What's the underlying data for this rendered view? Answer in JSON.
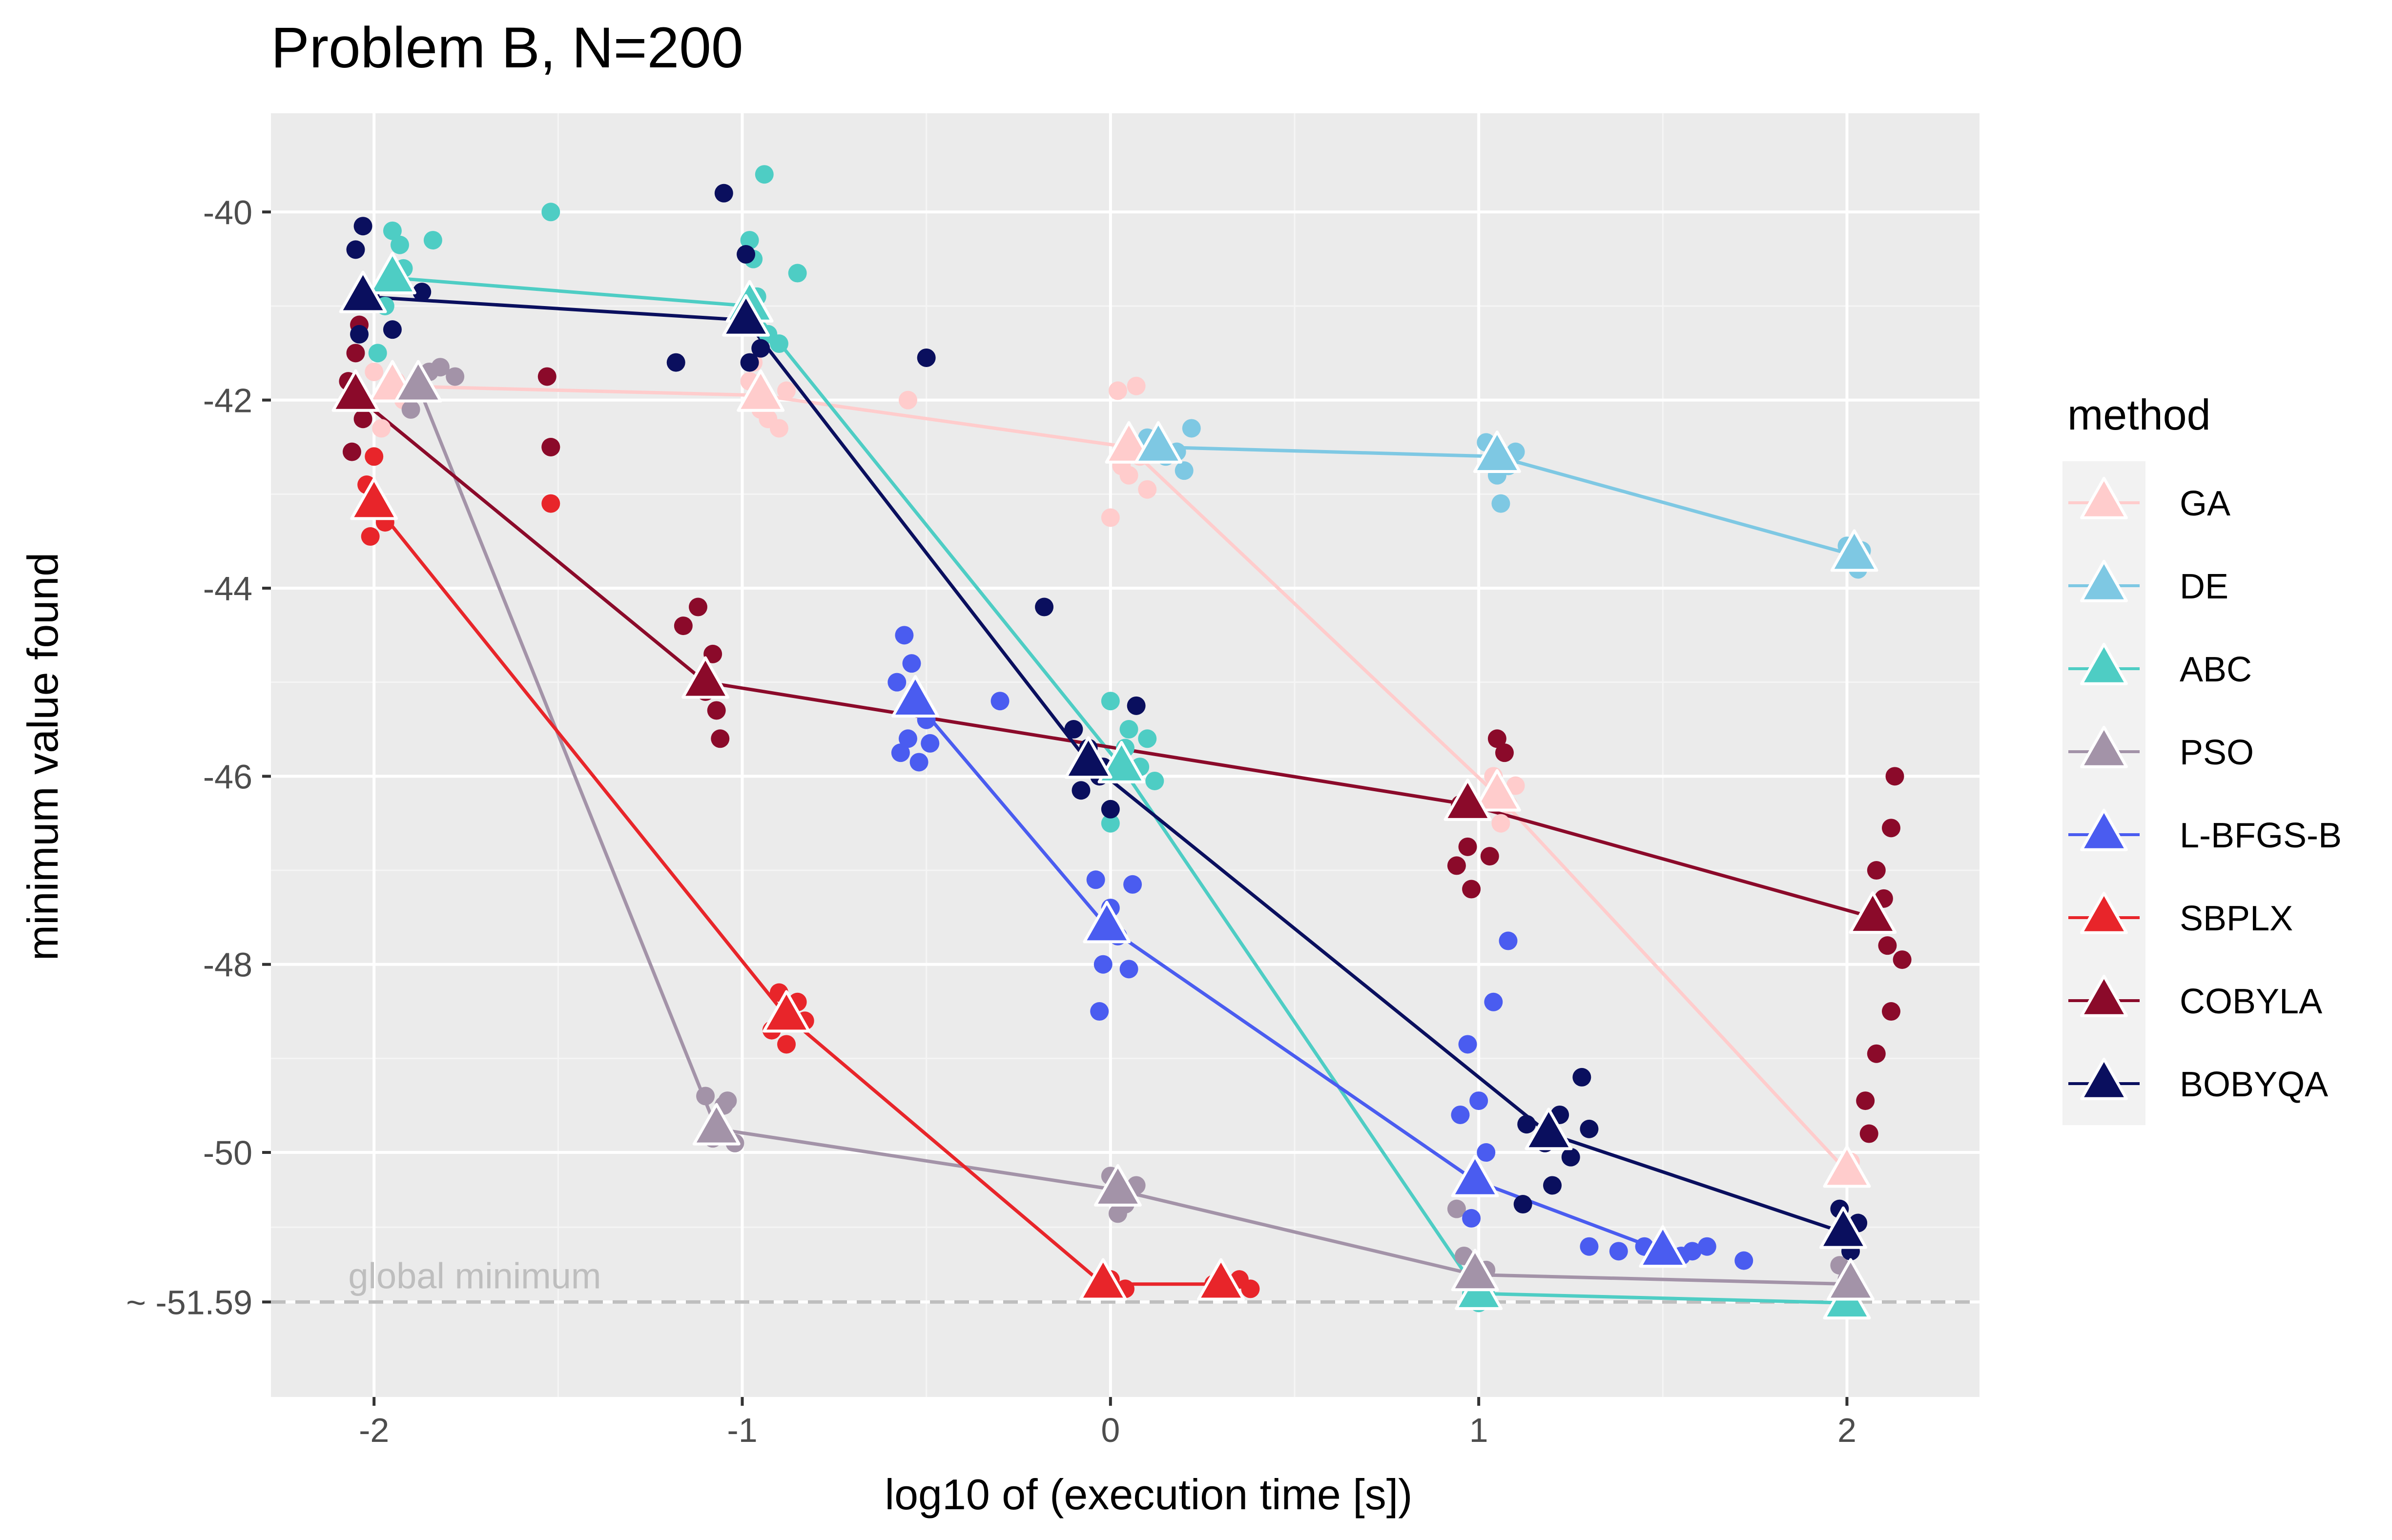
{
  "chart_data": {
    "type": "scatter",
    "title": "Problem B, N=200",
    "xlabel": "log10 of (execution time [s])",
    "ylabel": "minimum value found",
    "xlim": [
      -2.28,
      2.36
    ],
    "ylim": [
      -52.6,
      -38.95
    ],
    "x_ticks": [
      -2,
      -1,
      0,
      1,
      2
    ],
    "x_tick_labels": [
      "-2",
      "-1",
      "0",
      "1",
      "2"
    ],
    "y_ticks": [
      -40,
      -42,
      -44,
      -46,
      -48,
      -50,
      -51.59
    ],
    "y_tick_labels": [
      "-40",
      "-42",
      "-44",
      "-46",
      "-48",
      "-50",
      "~ -51.59"
    ],
    "grid": true,
    "background": "#ebebeb",
    "global_minimum": {
      "value": -51.59,
      "label": "global minimum",
      "color": "#bebebe"
    },
    "legend": {
      "title": "method",
      "position": "right"
    },
    "series": [
      {
        "name": "GA",
        "color": "#ffcccc",
        "means": [
          [
            -1.95,
            -41.85
          ],
          [
            -0.95,
            -41.95
          ],
          [
            0.05,
            -42.5
          ],
          [
            1.05,
            -46.2
          ],
          [
            2.0,
            -50.2
          ]
        ],
        "points": [
          [
            -2.0,
            -41.7
          ],
          [
            -1.96,
            -41.9
          ],
          [
            -1.92,
            -42.0
          ],
          [
            -1.98,
            -42.3
          ],
          [
            -1.94,
            -41.8
          ],
          [
            -1.9,
            -41.95
          ],
          [
            -0.98,
            -41.8
          ],
          [
            -0.95,
            -42.1
          ],
          [
            -0.9,
            -42.3
          ],
          [
            -0.93,
            -42.2
          ],
          [
            -0.97,
            -41.6
          ],
          [
            -0.88,
            -41.9
          ],
          [
            -0.55,
            -42.0
          ],
          [
            0.0,
            -43.25
          ],
          [
            0.02,
            -41.9
          ],
          [
            0.05,
            -42.8
          ],
          [
            0.08,
            -42.6
          ],
          [
            0.1,
            -42.95
          ],
          [
            0.07,
            -41.85
          ],
          [
            0.03,
            -42.7
          ],
          [
            1.04,
            -46.0
          ],
          [
            1.08,
            -46.3
          ],
          [
            1.1,
            -46.1
          ],
          [
            1.06,
            -46.5
          ],
          [
            2.01,
            -50.1
          ]
        ]
      },
      {
        "name": "DE",
        "color": "#7ec8e3",
        "means": [
          [
            0.13,
            -42.5
          ],
          [
            1.05,
            -42.6
          ],
          [
            2.02,
            -43.65
          ]
        ],
        "points": [
          [
            0.1,
            -42.4
          ],
          [
            0.15,
            -42.6
          ],
          [
            0.18,
            -42.55
          ],
          [
            0.22,
            -42.3
          ],
          [
            0.2,
            -42.75
          ],
          [
            0.12,
            -42.45
          ],
          [
            1.02,
            -42.45
          ],
          [
            1.05,
            -42.8
          ],
          [
            1.08,
            -42.7
          ],
          [
            1.06,
            -43.1
          ],
          [
            1.1,
            -42.55
          ],
          [
            2.0,
            -43.55
          ],
          [
            2.03,
            -43.8
          ],
          [
            2.04,
            -43.6
          ]
        ]
      },
      {
        "name": "ABC",
        "color": "#4ecdc4",
        "means": [
          [
            -1.95,
            -40.7
          ],
          [
            -0.98,
            -41.0
          ],
          [
            0.03,
            -45.9
          ],
          [
            1.0,
            -51.5
          ],
          [
            2.0,
            -51.6
          ]
        ],
        "points": [
          [
            -1.95,
            -40.2
          ],
          [
            -1.93,
            -40.35
          ],
          [
            -1.84,
            -40.3
          ],
          [
            -1.97,
            -41.0
          ],
          [
            -1.99,
            -41.5
          ],
          [
            -1.92,
            -40.6
          ],
          [
            -1.52,
            -40.0
          ],
          [
            -0.94,
            -39.6
          ],
          [
            -0.98,
            -40.3
          ],
          [
            -0.96,
            -40.9
          ],
          [
            -0.93,
            -41.3
          ],
          [
            -0.9,
            -41.4
          ],
          [
            -0.85,
            -40.65
          ],
          [
            -0.97,
            -40.5
          ],
          [
            0.0,
            -45.2
          ],
          [
            0.05,
            -45.5
          ],
          [
            0.1,
            -45.6
          ],
          [
            0.08,
            -45.9
          ],
          [
            0.12,
            -46.05
          ],
          [
            0.0,
            -46.5
          ],
          [
            0.04,
            -45.7
          ],
          [
            0.98,
            -51.5
          ],
          [
            1.0,
            -51.6
          ],
          [
            1.02,
            -51.45
          ],
          [
            1.99,
            -51.6
          ],
          [
            2.01,
            -51.55
          ]
        ]
      },
      {
        "name": "PSO",
        "color": "#a393a8",
        "means": [
          [
            -1.88,
            -41.85
          ],
          [
            -1.07,
            -49.75
          ],
          [
            0.02,
            -50.4
          ],
          [
            0.99,
            -51.3
          ],
          [
            2.01,
            -51.4
          ]
        ],
        "points": [
          [
            -1.85,
            -41.7
          ],
          [
            -1.87,
            -41.9
          ],
          [
            -1.9,
            -42.1
          ],
          [
            -1.82,
            -41.65
          ],
          [
            -1.78,
            -41.75
          ],
          [
            -1.1,
            -49.4
          ],
          [
            -1.05,
            -49.5
          ],
          [
            -1.02,
            -49.9
          ],
          [
            -1.08,
            -49.85
          ],
          [
            -1.04,
            -49.45
          ],
          [
            0.0,
            -50.25
          ],
          [
            0.04,
            -50.55
          ],
          [
            0.07,
            -50.35
          ],
          [
            0.02,
            -50.65
          ],
          [
            0.96,
            -51.1
          ],
          [
            0.98,
            -51.4
          ],
          [
            1.02,
            -51.25
          ],
          [
            0.94,
            -50.6
          ],
          [
            1.0,
            -51.5
          ],
          [
            2.0,
            -51.35
          ],
          [
            2.03,
            -51.45
          ],
          [
            1.98,
            -51.2
          ]
        ]
      },
      {
        "name": "L-BFGS-B",
        "color": "#4a5cf0",
        "means": [
          [
            -0.53,
            -45.2
          ],
          [
            -0.01,
            -47.6
          ],
          [
            0.99,
            -50.3
          ],
          [
            1.5,
            -51.05
          ]
        ],
        "points": [
          [
            -0.56,
            -44.5
          ],
          [
            -0.54,
            -44.8
          ],
          [
            -0.58,
            -45.0
          ],
          [
            -0.5,
            -45.4
          ],
          [
            -0.55,
            -45.6
          ],
          [
            -0.52,
            -45.85
          ],
          [
            -0.57,
            -45.75
          ],
          [
            -0.49,
            -45.65
          ],
          [
            -0.3,
            -45.2
          ],
          [
            -0.04,
            -47.1
          ],
          [
            0.0,
            -47.4
          ],
          [
            -0.02,
            -48.0
          ],
          [
            0.02,
            -47.7
          ],
          [
            0.05,
            -48.05
          ],
          [
            -0.03,
            -48.5
          ],
          [
            0.06,
            -47.15
          ],
          [
            0.95,
            -49.6
          ],
          [
            1.0,
            -49.45
          ],
          [
            1.02,
            -50.0
          ],
          [
            0.98,
            -50.7
          ],
          [
            0.97,
            -48.85
          ],
          [
            1.04,
            -48.4
          ],
          [
            1.08,
            -47.75
          ],
          [
            1.3,
            -51.0
          ],
          [
            1.38,
            -51.05
          ],
          [
            1.45,
            -51.0
          ],
          [
            1.55,
            -51.1
          ],
          [
            1.62,
            -51.0
          ],
          [
            1.72,
            -51.15
          ],
          [
            1.5,
            -51.1
          ],
          [
            1.58,
            -51.05
          ]
        ]
      },
      {
        "name": "SBPLX",
        "color": "#e8252a",
        "means": [
          [
            -2.0,
            -43.1
          ],
          [
            -0.88,
            -48.55
          ],
          [
            -0.02,
            -51.4
          ],
          [
            0.3,
            -51.4
          ]
        ],
        "points": [
          [
            -2.0,
            -42.6
          ],
          [
            -2.02,
            -42.9
          ],
          [
            -1.98,
            -43.2
          ],
          [
            -2.01,
            -43.45
          ],
          [
            -1.97,
            -43.3
          ],
          [
            -1.52,
            -43.1
          ],
          [
            -1.52,
            -42.5
          ],
          [
            -0.9,
            -48.3
          ],
          [
            -0.85,
            -48.4
          ],
          [
            -0.92,
            -48.7
          ],
          [
            -0.88,
            -48.85
          ],
          [
            -0.83,
            -48.6
          ],
          [
            -0.03,
            -51.4
          ],
          [
            0.0,
            -51.35
          ],
          [
            0.04,
            -51.45
          ],
          [
            0.28,
            -51.4
          ],
          [
            0.35,
            -51.35
          ],
          [
            0.38,
            -51.45
          ]
        ]
      },
      {
        "name": "COBYLA",
        "color": "#8b0a2a",
        "means": [
          [
            -2.05,
            -41.95
          ],
          [
            -1.1,
            -45.0
          ],
          [
            0.97,
            -46.3
          ],
          [
            2.07,
            -47.5
          ]
        ],
        "points": [
          [
            -2.05,
            -41.5
          ],
          [
            -2.07,
            -41.8
          ],
          [
            -2.03,
            -42.2
          ],
          [
            -2.06,
            -42.55
          ],
          [
            -2.04,
            -41.2
          ],
          [
            -1.53,
            -41.75
          ],
          [
            -1.52,
            -42.5
          ],
          [
            -1.16,
            -44.4
          ],
          [
            -1.12,
            -44.2
          ],
          [
            -1.08,
            -44.7
          ],
          [
            -1.1,
            -45.1
          ],
          [
            -1.07,
            -45.3
          ],
          [
            -1.06,
            -45.6
          ],
          [
            0.95,
            -46.3
          ],
          [
            0.97,
            -46.75
          ],
          [
            0.94,
            -46.95
          ],
          [
            0.98,
            -47.2
          ],
          [
            1.03,
            -46.85
          ],
          [
            1.05,
            -45.6
          ],
          [
            1.07,
            -45.75
          ],
          [
            2.08,
            -47.0
          ],
          [
            2.1,
            -47.3
          ],
          [
            2.12,
            -46.55
          ],
          [
            2.13,
            -46.0
          ],
          [
            2.15,
            -47.95
          ],
          [
            2.12,
            -48.5
          ],
          [
            2.08,
            -48.95
          ],
          [
            2.05,
            -49.45
          ],
          [
            2.06,
            -49.8
          ],
          [
            2.11,
            -47.8
          ]
        ]
      },
      {
        "name": "BOBYQA",
        "color": "#0a0f5e",
        "means": [
          [
            -2.03,
            -40.9
          ],
          [
            -0.99,
            -41.15
          ],
          [
            -0.06,
            -45.85
          ],
          [
            1.19,
            -49.8
          ],
          [
            1.99,
            -50.85
          ]
        ],
        "points": [
          [
            -2.03,
            -40.15
          ],
          [
            -2.05,
            -40.4
          ],
          [
            -2.01,
            -40.9
          ],
          [
            -2.04,
            -41.3
          ],
          [
            -1.95,
            -41.25
          ],
          [
            -1.87,
            -40.85
          ],
          [
            -1.18,
            -41.6
          ],
          [
            -1.05,
            -39.8
          ],
          [
            -0.99,
            -40.45
          ],
          [
            -0.97,
            -41.0
          ],
          [
            -0.95,
            -41.45
          ],
          [
            -0.98,
            -41.6
          ],
          [
            -0.5,
            -41.55
          ],
          [
            -0.18,
            -44.2
          ],
          [
            -0.1,
            -45.5
          ],
          [
            -0.06,
            -45.7
          ],
          [
            -0.03,
            -46.0
          ],
          [
            -0.08,
            -46.15
          ],
          [
            0.0,
            -46.35
          ],
          [
            -0.02,
            -45.9
          ],
          [
            0.07,
            -45.25
          ],
          [
            1.13,
            -49.7
          ],
          [
            1.18,
            -49.9
          ],
          [
            1.22,
            -49.6
          ],
          [
            1.25,
            -50.05
          ],
          [
            1.2,
            -50.35
          ],
          [
            1.28,
            -49.2
          ],
          [
            1.12,
            -50.55
          ],
          [
            1.3,
            -49.75
          ],
          [
            1.98,
            -50.6
          ],
          [
            2.01,
            -51.05
          ],
          [
            2.03,
            -50.75
          ]
        ]
      }
    ]
  }
}
